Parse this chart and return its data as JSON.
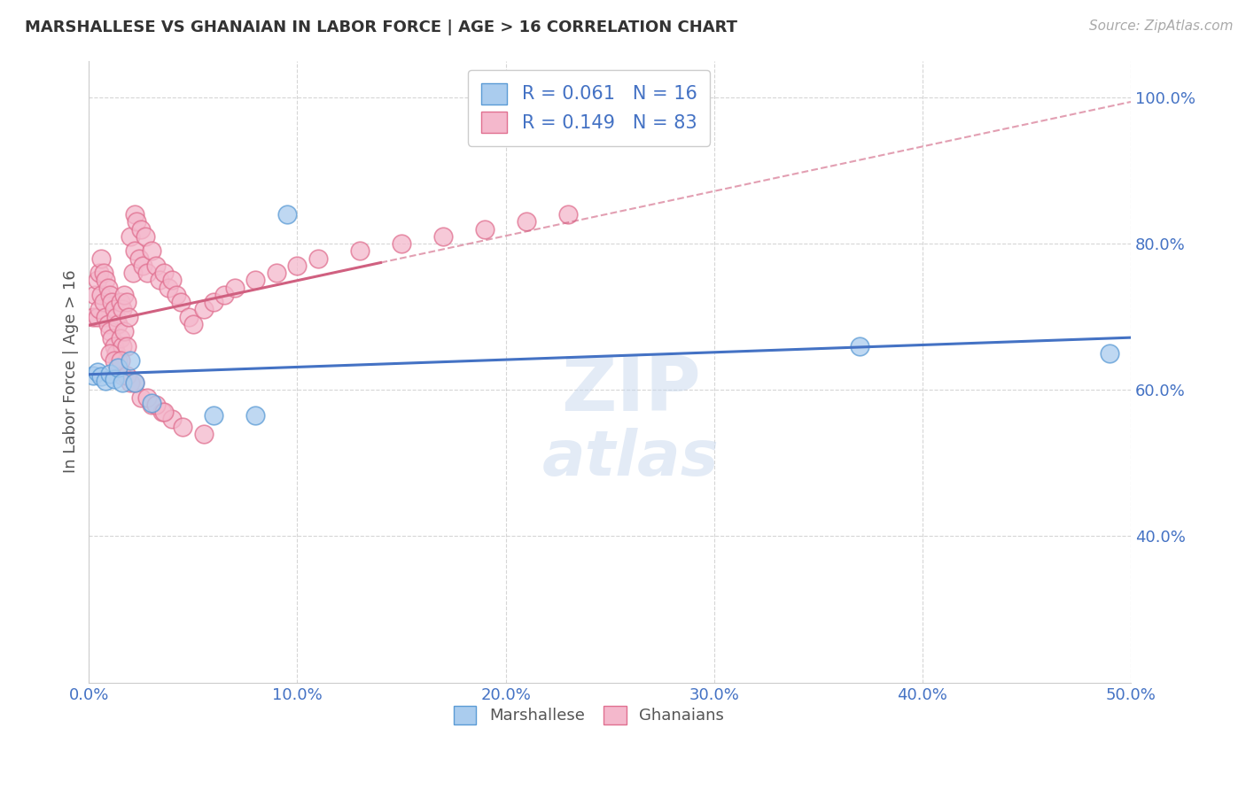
{
  "title": "MARSHALLESE VS GHANAIAN IN LABOR FORCE | AGE > 16 CORRELATION CHART",
  "source": "Source: ZipAtlas.com",
  "ylabel": "In Labor Force | Age > 16",
  "xlim": [
    0.0,
    0.5
  ],
  "ylim": [
    0.2,
    1.05
  ],
  "xticks": [
    0.0,
    0.1,
    0.2,
    0.3,
    0.4,
    0.5
  ],
  "yticks": [
    0.4,
    0.6,
    0.8,
    1.0
  ],
  "ytick_labels": [
    "40.0%",
    "60.0%",
    "80.0%",
    "100.0%"
  ],
  "xtick_labels": [
    "0.0%",
    "10.0%",
    "20.0%",
    "30.0%",
    "40.0%",
    "50.0%"
  ],
  "color_marshallese_fill": "#aaccee",
  "color_marshallese_edge": "#5b9bd5",
  "color_ghanaian_fill": "#f4b8cc",
  "color_ghanaian_edge": "#e07090",
  "color_line_marshallese": "#4472c4",
  "color_line_ghanaian": "#d06080",
  "background_color": "#ffffff",
  "watermark_color": "#c8d8ee",
  "marshallese_x": [
    0.002,
    0.004,
    0.006,
    0.008,
    0.01,
    0.012,
    0.014,
    0.016,
    0.02,
    0.022,
    0.03,
    0.06,
    0.08,
    0.095,
    0.37,
    0.49
  ],
  "marshallese_y": [
    0.62,
    0.625,
    0.618,
    0.612,
    0.622,
    0.615,
    0.63,
    0.61,
    0.64,
    0.61,
    0.582,
    0.565,
    0.565,
    0.84,
    0.66,
    0.65
  ],
  "ghanaian_x": [
    0.002,
    0.003,
    0.004,
    0.004,
    0.005,
    0.005,
    0.006,
    0.006,
    0.007,
    0.007,
    0.008,
    0.008,
    0.009,
    0.009,
    0.01,
    0.01,
    0.011,
    0.011,
    0.012,
    0.012,
    0.013,
    0.013,
    0.014,
    0.014,
    0.015,
    0.015,
    0.016,
    0.016,
    0.017,
    0.017,
    0.018,
    0.018,
    0.019,
    0.02,
    0.021,
    0.022,
    0.022,
    0.023,
    0.024,
    0.025,
    0.026,
    0.027,
    0.028,
    0.03,
    0.032,
    0.034,
    0.036,
    0.038,
    0.04,
    0.042,
    0.044,
    0.048,
    0.05,
    0.055,
    0.06,
    0.065,
    0.07,
    0.08,
    0.09,
    0.1,
    0.11,
    0.13,
    0.15,
    0.17,
    0.19,
    0.21,
    0.23,
    0.01,
    0.012,
    0.016,
    0.02,
    0.025,
    0.03,
    0.035,
    0.04,
    0.015,
    0.018,
    0.022,
    0.028,
    0.032,
    0.036,
    0.045,
    0.055
  ],
  "ghanaian_y": [
    0.7,
    0.73,
    0.75,
    0.7,
    0.76,
    0.71,
    0.78,
    0.73,
    0.76,
    0.72,
    0.75,
    0.7,
    0.74,
    0.69,
    0.73,
    0.68,
    0.72,
    0.67,
    0.71,
    0.66,
    0.7,
    0.65,
    0.69,
    0.64,
    0.72,
    0.67,
    0.71,
    0.66,
    0.73,
    0.68,
    0.72,
    0.66,
    0.7,
    0.81,
    0.76,
    0.84,
    0.79,
    0.83,
    0.78,
    0.82,
    0.77,
    0.81,
    0.76,
    0.79,
    0.77,
    0.75,
    0.76,
    0.74,
    0.75,
    0.73,
    0.72,
    0.7,
    0.69,
    0.71,
    0.72,
    0.73,
    0.74,
    0.75,
    0.76,
    0.77,
    0.78,
    0.79,
    0.8,
    0.81,
    0.82,
    0.83,
    0.84,
    0.65,
    0.64,
    0.62,
    0.61,
    0.59,
    0.58,
    0.57,
    0.56,
    0.64,
    0.62,
    0.61,
    0.59,
    0.58,
    0.57,
    0.55,
    0.54
  ]
}
